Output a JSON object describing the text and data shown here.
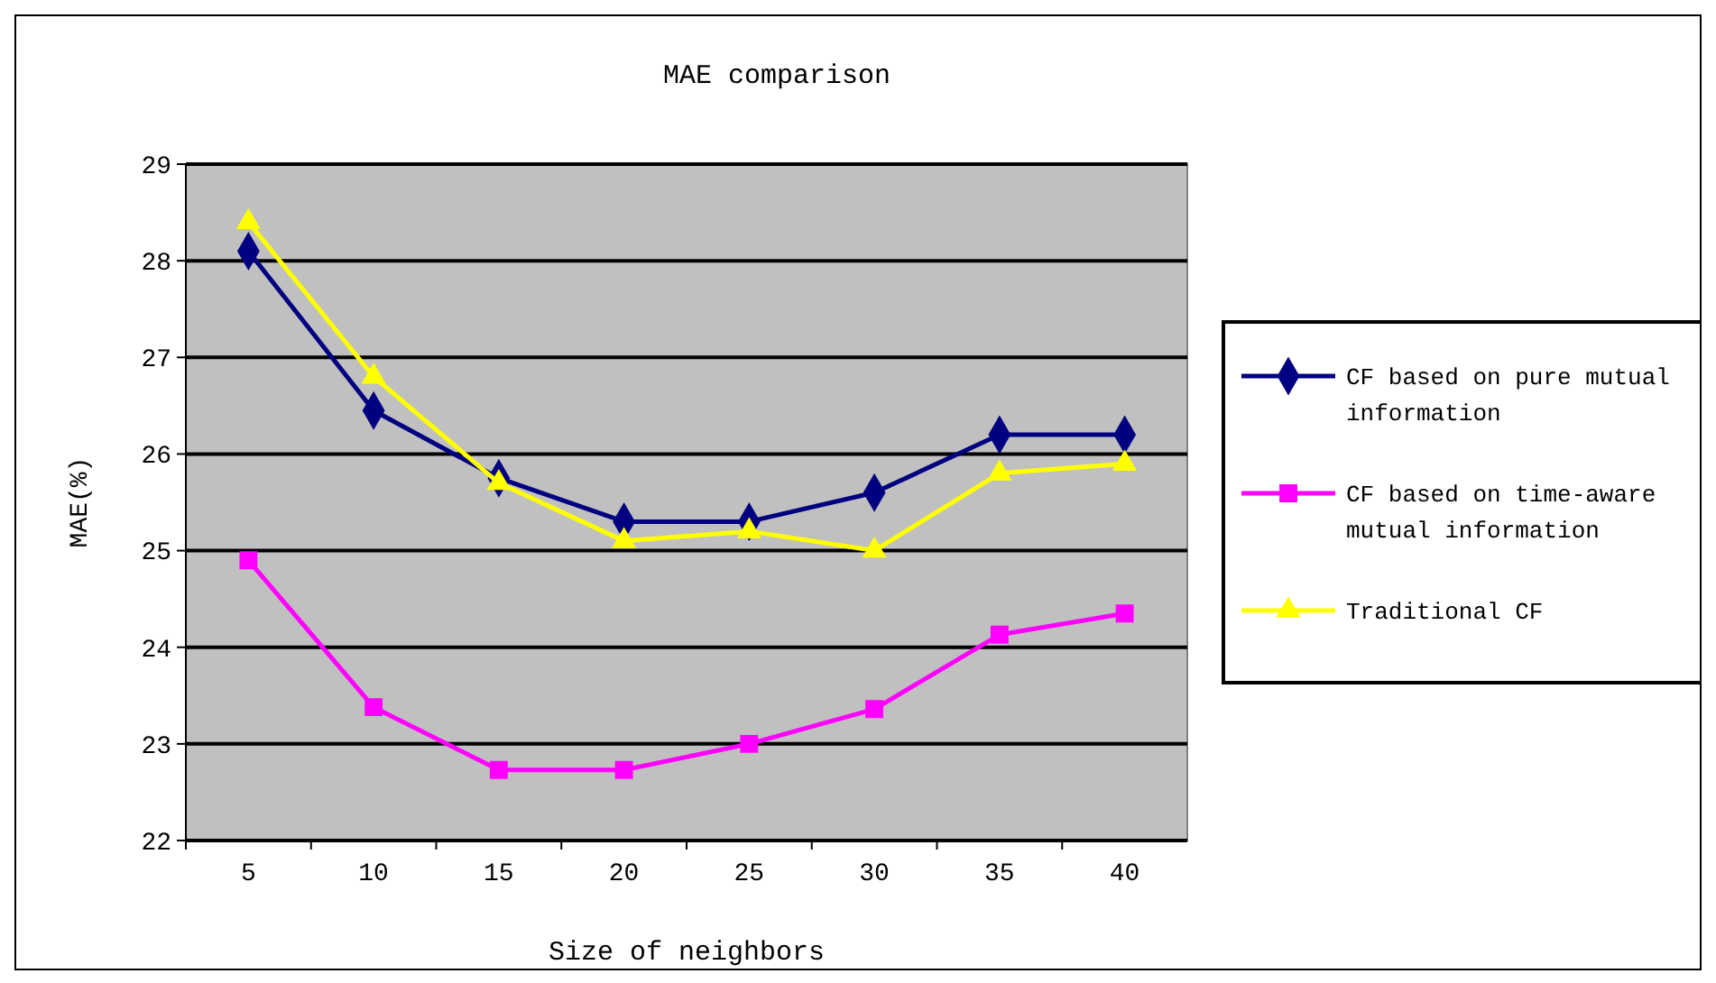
{
  "chart_data": {
    "type": "line",
    "title": "MAE comparison",
    "xlabel": "Size of neighbors",
    "ylabel": "MAE(%)",
    "categories": [
      "5",
      "10",
      "15",
      "20",
      "25",
      "30",
      "35",
      "40"
    ],
    "ylim": [
      22,
      29
    ],
    "yticks": [
      22,
      23,
      24,
      25,
      26,
      27,
      28,
      29
    ],
    "grid": "y",
    "legend": "right",
    "series": [
      {
        "name": "CF based on pure mutual information",
        "color": "#000080",
        "marker": "diamond",
        "values": [
          28.1,
          26.45,
          25.75,
          25.3,
          25.3,
          25.6,
          26.2,
          26.2
        ]
      },
      {
        "name": "CF based on time-aware mutual information",
        "color": "#ff00ff",
        "marker": "square",
        "values": [
          24.9,
          23.38,
          22.73,
          22.73,
          23.0,
          23.36,
          24.13,
          24.35
        ]
      },
      {
        "name": "Traditional CF",
        "color": "#ffff00",
        "marker": "triangle",
        "values": [
          28.4,
          26.8,
          25.7,
          25.1,
          25.2,
          25.0,
          25.8,
          25.9
        ]
      }
    ]
  }
}
